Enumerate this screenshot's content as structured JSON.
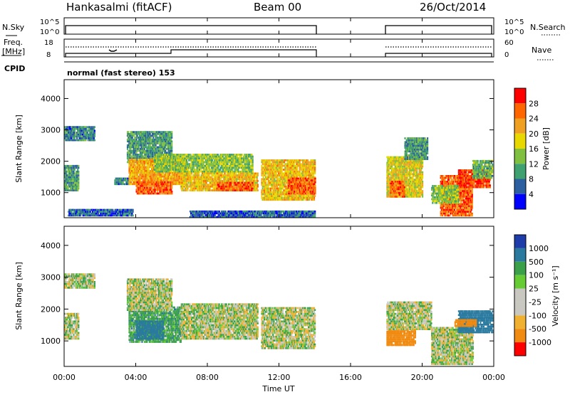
{
  "header": {
    "station": "Hankasalmi (fitACF)",
    "beam": "Beam 00",
    "date": "26/Oct/2014"
  },
  "panels": {
    "nsky": {
      "label": "N.Sky",
      "right_label": "N.Search",
      "y_ticks_left": [
        "10^5",
        "10^0"
      ],
      "y_ticks_right": [
        "10^5",
        "10^0"
      ]
    },
    "freq": {
      "label_line1": "Freq.",
      "label_line2": "[MHz]",
      "right_label": "Nave",
      "y_ticks_left": [
        "18",
        "8"
      ],
      "y_ticks_right": [
        "60",
        "0"
      ]
    },
    "cpid": {
      "label": "CPID",
      "text": "normal (fast stereo) 153"
    },
    "power": {
      "ylabel": "Slant Range [km]",
      "y_ticks": [
        "4000",
        "3000",
        "2000",
        "1000"
      ],
      "colorbar_label": "Power [dB]",
      "colorbar_ticks": [
        "28",
        "24",
        "20",
        "16",
        "12",
        "8",
        "4"
      ],
      "colorbar_colors": [
        "#ff0000",
        "#ff6600",
        "#f0a020",
        "#e8d800",
        "#80c040",
        "#3fa070",
        "#2c5fa0",
        "#0000ff"
      ]
    },
    "velocity": {
      "ylabel": "Slant Range [km]",
      "y_ticks": [
        "4000",
        "3000",
        "2000",
        "1000"
      ],
      "colorbar_label": "Velocity [m s⁻¹]",
      "colorbar_ticks": [
        "1000",
        "500",
        "100",
        "25",
        "-25",
        "-100",
        "-500",
        "-1000"
      ],
      "colorbar_colors": [
        "#1e3caa",
        "#2a7aa0",
        "#3aa04a",
        "#66cc33",
        "#c8c8c0",
        "#c8c8c0",
        "#f0b030",
        "#f08a10",
        "#ff0000"
      ]
    }
  },
  "x_axis": {
    "ticks": [
      "00:00",
      "04:00",
      "08:00",
      "12:00",
      "16:00",
      "20:00",
      "00:00"
    ],
    "label": "Time UT"
  },
  "chart_data": [
    {
      "type": "line",
      "name": "N.Sky / N.Search",
      "x_range_hours": [
        0,
        24
      ],
      "segments": [
        {
          "x": [
            0.0,
            14.0
          ],
          "nsky": "~10^3",
          "nsearch": "~10^3"
        },
        {
          "x": [
            18.0,
            24.0
          ],
          "nsky": "~10^3",
          "nsearch": "~10^3"
        }
      ],
      "gap_hours": [
        14.0,
        18.0
      ]
    },
    {
      "type": "line",
      "name": "Freq / Nave",
      "x_range_hours": [
        0,
        24
      ],
      "freq_mhz": [
        {
          "x": [
            0.0,
            6.0
          ],
          "y": 10
        },
        {
          "x": [
            6.0,
            14.0
          ],
          "y": 12
        },
        {
          "x": [
            18.0,
            24.0
          ],
          "y": 10
        }
      ],
      "nave": [
        {
          "x": [
            0.0,
            14.0
          ],
          "y": 36
        },
        {
          "x": [
            18.0,
            24.0
          ],
          "y": 36
        }
      ]
    },
    {
      "type": "heatmap",
      "title": "Power [dB]",
      "x_range_hours": [
        0,
        24
      ],
      "y_range_km": [
        200,
        4600
      ],
      "color_range_db": [
        0,
        32
      ],
      "patches": [
        {
          "t0": 0.0,
          "t1": 1.7,
          "r0": 2700,
          "r1": 3150,
          "db": 8
        },
        {
          "t0": 0.0,
          "t1": 0.8,
          "r0": 1100,
          "r1": 1900,
          "db": 10
        },
        {
          "t0": 0.2,
          "t1": 3.8,
          "r0": 300,
          "r1": 500,
          "db": 6
        },
        {
          "t0": 2.8,
          "t1": 3.6,
          "r0": 1300,
          "r1": 1500,
          "db": 8
        },
        {
          "t0": 3.5,
          "t1": 6.0,
          "r0": 2000,
          "r1": 3000,
          "db": 10
        },
        {
          "t0": 3.6,
          "t1": 6.8,
          "r0": 1300,
          "r1": 2100,
          "db": 22
        },
        {
          "t0": 4.0,
          "t1": 6.0,
          "r0": 1000,
          "r1": 1400,
          "db": 26
        },
        {
          "t0": 5.0,
          "t1": 10.5,
          "r0": 1700,
          "r1": 2300,
          "db": 14
        },
        {
          "t0": 6.5,
          "t1": 10.8,
          "r0": 1100,
          "r1": 1700,
          "db": 20
        },
        {
          "t0": 8.5,
          "t1": 10.5,
          "r0": 1100,
          "r1": 1400,
          "db": 26
        },
        {
          "t0": 11.0,
          "t1": 14.0,
          "r0": 800,
          "r1": 2100,
          "db": 20
        },
        {
          "t0": 12.5,
          "t1": 14.0,
          "r0": 1000,
          "r1": 1500,
          "db": 26
        },
        {
          "t0": 7.0,
          "t1": 14.0,
          "r0": 250,
          "r1": 450,
          "db": 6
        },
        {
          "t0": 18.0,
          "t1": 20.0,
          "r0": 900,
          "r1": 2200,
          "db": 18
        },
        {
          "t0": 18.2,
          "t1": 19.0,
          "r0": 900,
          "r1": 1400,
          "db": 26
        },
        {
          "t0": 19.0,
          "t1": 20.3,
          "r0": 2100,
          "r1": 2800,
          "db": 10
        },
        {
          "t0": 21.0,
          "t1": 22.8,
          "r0": 300,
          "r1": 1600,
          "db": 26
        },
        {
          "t0": 22.0,
          "t1": 23.8,
          "r0": 1200,
          "r1": 1800,
          "db": 28
        },
        {
          "t0": 22.8,
          "t1": 24.0,
          "r0": 1500,
          "r1": 2100,
          "db": 12
        },
        {
          "t0": 20.5,
          "t1": 22.0,
          "r0": 700,
          "r1": 1300,
          "db": 14
        }
      ]
    },
    {
      "type": "heatmap",
      "title": "Velocity [m s⁻¹]",
      "x_range_hours": [
        0,
        24
      ],
      "y_range_km": [
        200,
        4600
      ],
      "color_range_ms": [
        -1000,
        1000
      ],
      "patches": [
        {
          "t0": 0.0,
          "t1": 1.7,
          "r0": 2700,
          "r1": 3150,
          "v": 0
        },
        {
          "t0": 0.0,
          "t1": 0.8,
          "r0": 1100,
          "r1": 1900,
          "v": 0
        },
        {
          "t0": 3.6,
          "t1": 6.5,
          "r0": 1000,
          "r1": 2100,
          "v": 60
        },
        {
          "t0": 4.0,
          "t1": 5.5,
          "r0": 1100,
          "r1": 1700,
          "v": 150
        },
        {
          "t0": 3.5,
          "t1": 6.0,
          "r0": 2000,
          "r1": 3000,
          "v": 0
        },
        {
          "t0": 6.5,
          "t1": 10.8,
          "r0": 1100,
          "r1": 2200,
          "v": 0
        },
        {
          "t0": 11.0,
          "t1": 14.0,
          "r0": 800,
          "r1": 2100,
          "v": 0
        },
        {
          "t0": 18.0,
          "t1": 19.6,
          "r0": 900,
          "r1": 1400,
          "v": -300
        },
        {
          "t0": 18.0,
          "t1": 20.5,
          "r0": 1400,
          "r1": 2300,
          "v": 0
        },
        {
          "t0": 20.5,
          "t1": 22.8,
          "r0": 300,
          "r1": 1500,
          "v": 0
        },
        {
          "t0": 22.0,
          "t1": 24.0,
          "r0": 1300,
          "r1": 2000,
          "v": 300
        },
        {
          "t0": 21.8,
          "t1": 23.0,
          "r0": 1500,
          "r1": 1700,
          "v": -300
        }
      ]
    }
  ]
}
